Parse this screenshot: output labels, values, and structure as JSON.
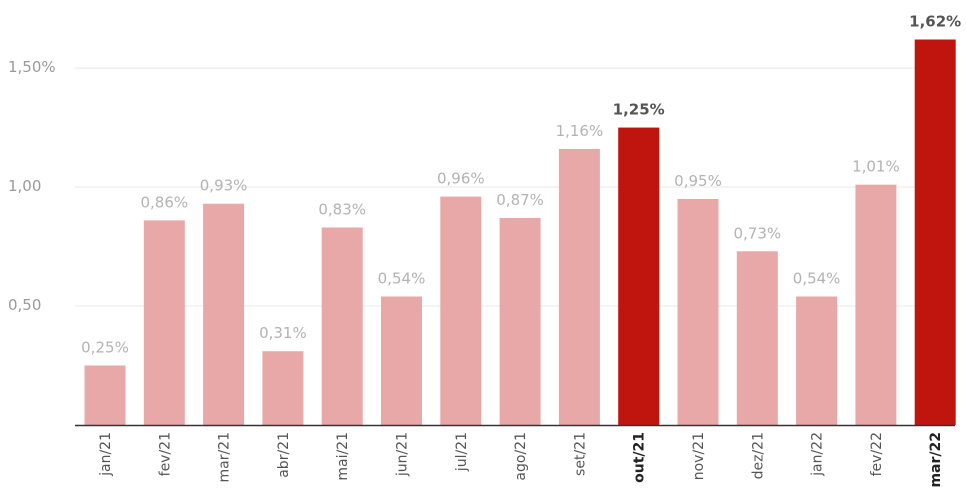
{
  "chart_data": {
    "type": "bar",
    "title": "",
    "xlabel": "",
    "ylabel": "",
    "categories": [
      "jan/21",
      "fev/21",
      "mar/21",
      "abr/21",
      "mai/21",
      "jun/21",
      "jul/21",
      "ago/21",
      "set/21",
      "out/21",
      "nov/21",
      "dez/21",
      "jan/22",
      "fev/22",
      "mar/22"
    ],
    "values": [
      0.25,
      0.86,
      0.93,
      0.31,
      0.83,
      0.54,
      0.96,
      0.87,
      1.16,
      1.25,
      0.95,
      0.73,
      0.54,
      1.01,
      1.62
    ],
    "value_labels": [
      "0,25%",
      "0,86%",
      "0,93%",
      "0,31%",
      "0,83%",
      "0,54%",
      "0,96%",
      "0,87%",
      "1,16%",
      "1,25%",
      "0,95%",
      "0,73%",
      "0,54%",
      "1,01%",
      "1,62%"
    ],
    "highlighted": [
      "out/21",
      "mar/22"
    ],
    "ylim": [
      0,
      1.66
    ],
    "yticks": [
      {
        "value": 0.5,
        "label": "0,50"
      },
      {
        "value": 1.0,
        "label": "1,00"
      },
      {
        "value": 1.5,
        "label": "1,50%"
      }
    ],
    "grid": true,
    "colors": {
      "bar": "#e8a8a7",
      "highlight": "#c0150f",
      "value_label": "#b3b3b3",
      "highlight_label": "#555555",
      "axis_label": "#555555",
      "grid": "#e8e8e8",
      "axis": "#333333"
    }
  }
}
